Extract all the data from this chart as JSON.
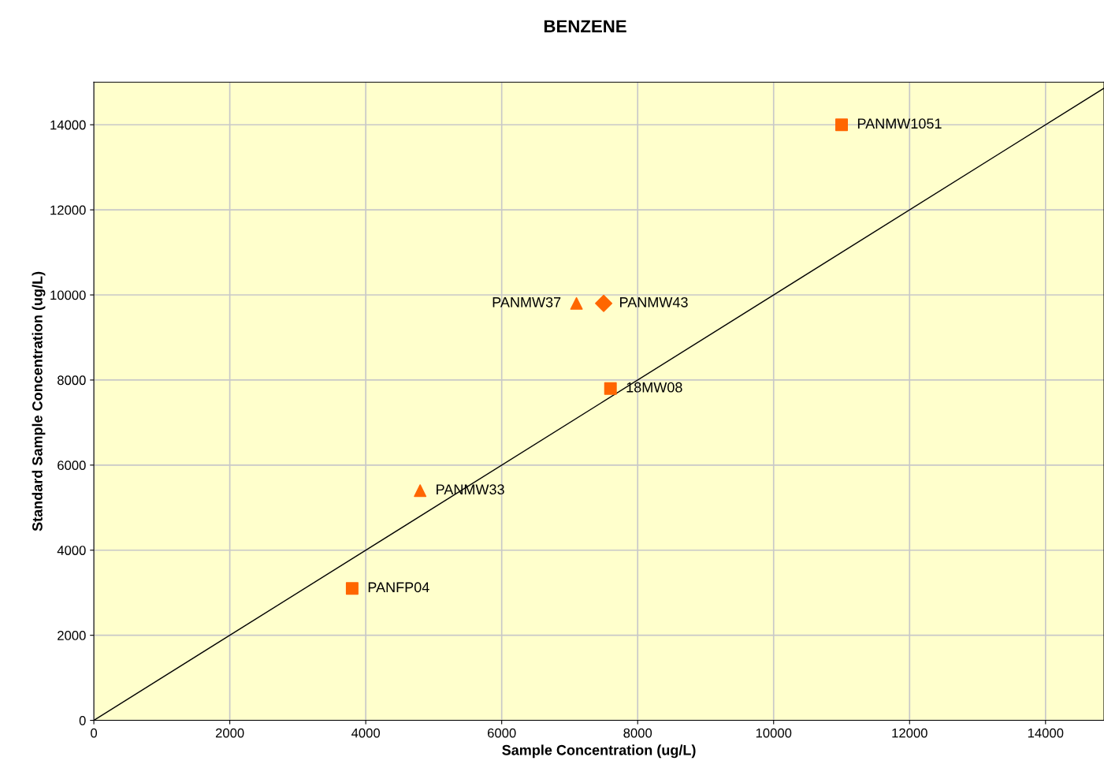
{
  "chart_data": {
    "type": "scatter",
    "title": "BENZENE",
    "xlabel": "Sample Concentration (ug/L)",
    "ylabel": "Standard Sample Concentration (ug/L)",
    "xlim": [
      0,
      14860
    ],
    "ylim": [
      0,
      15000
    ],
    "xticks": [
      0,
      2000,
      4000,
      6000,
      8000,
      10000,
      12000,
      14000
    ],
    "yticks": [
      0,
      2000,
      4000,
      6000,
      8000,
      10000,
      12000,
      14000
    ],
    "grid": true,
    "series": [
      {
        "name": "PANMW1051",
        "color": "#ff6600",
        "marker": "square",
        "x": [
          11000
        ],
        "values": [
          14000
        ]
      },
      {
        "name": "PANMW37",
        "color": "#ff6600",
        "marker": "triangle",
        "x": [
          7100
        ],
        "values": [
          9800
        ]
      },
      {
        "name": "PANMW43",
        "color": "#ff6600",
        "marker": "diamond",
        "x": [
          7500
        ],
        "values": [
          9800
        ]
      },
      {
        "name": "18MW08",
        "color": "#ff6600",
        "marker": "square",
        "x": [
          7600
        ],
        "values": [
          7800
        ]
      },
      {
        "name": "PANMW33",
        "color": "#ff6600",
        "marker": "triangle",
        "x": [
          4800
        ],
        "values": [
          5400
        ]
      },
      {
        "name": "PANFP04",
        "color": "#ff6600",
        "marker": "square",
        "x": [
          3800
        ],
        "values": [
          3100
        ]
      },
      {
        "type": "line",
        "color": "#000000",
        "marker": "none",
        "x": [
          0,
          14860
        ],
        "values": [
          0,
          14860
        ]
      }
    ]
  }
}
